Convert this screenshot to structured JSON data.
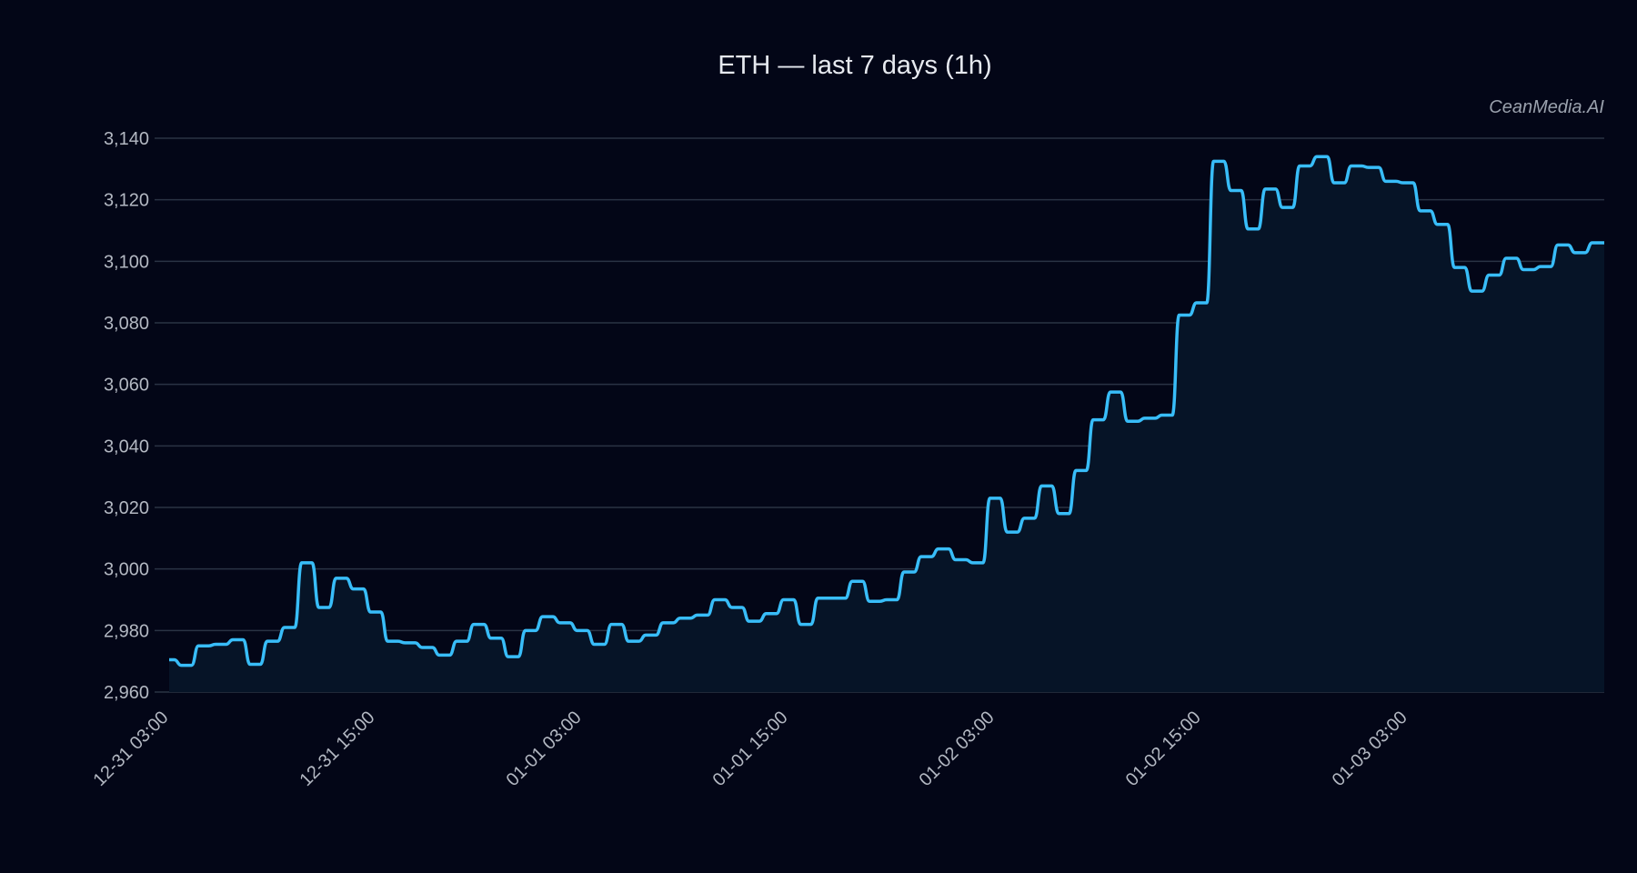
{
  "chart": {
    "title": "ETH — last 7 days (1h)",
    "watermark": "CeanMedia.AI"
  },
  "colors": {
    "background": "#030617",
    "line": "#38bdf8",
    "fill": "#061427",
    "grid": "#2a3344",
    "tick_text": "#b3b8c2",
    "title_text": "#e6e9ef"
  },
  "chart_data": {
    "type": "area",
    "title": "ETH — last 7 days (1h)",
    "xlabel": "",
    "ylabel": "",
    "ylim": [
      2960,
      3140
    ],
    "yticks": [
      2960,
      2980,
      3000,
      3020,
      3040,
      3060,
      3080,
      3100,
      3120,
      3140
    ],
    "ytick_labels": [
      "2,960",
      "2,980",
      "3,000",
      "3,020",
      "3,040",
      "3,060",
      "3,080",
      "3,100",
      "3,120",
      "3,140"
    ],
    "xtick_labels": [
      "12-31 03:00",
      "12-31 15:00",
      "01-01 03:00",
      "01-01 15:00",
      "01-02 03:00",
      "01-02 15:00",
      "01-03 03:00"
    ],
    "xtick_hours": [
      0,
      12,
      24,
      36,
      48,
      60,
      72
    ],
    "grid": true,
    "legend": null,
    "interval": "1h",
    "series": [
      {
        "name": "ETH",
        "values": [
          2970.5,
          2968.7,
          2975,
          2975.5,
          2977,
          2969,
          2976.5,
          2981,
          3002,
          2987.5,
          2997,
          2993.5,
          2986,
          2976.5,
          2976,
          2974.5,
          2972,
          2976.5,
          2982,
          2977.5,
          2971.5,
          2980,
          2984.5,
          2982.5,
          2980,
          2975.5,
          2982,
          2976.5,
          2978.5,
          2982.5,
          2984,
          2985,
          2990,
          2987.5,
          2983,
          2985.5,
          2990,
          2982,
          2990.5,
          2990.5,
          2996,
          2989.5,
          2990,
          2999,
          3004,
          3006.5,
          3003,
          3002,
          3023,
          3012,
          3016.5,
          3027,
          3018,
          3032,
          3048.5,
          3057.5,
          3048,
          3049,
          3050,
          3082.5,
          3086.5,
          3132.5,
          3123,
          3110.5,
          3123.5,
          3117.5,
          3131,
          3134,
          3125.5,
          3131,
          3130.5,
          3126,
          3125.5,
          3116.4,
          3112,
          3098,
          3090.3,
          3095.5,
          3101,
          3097.3,
          3098.3,
          3105.3,
          3102.8,
          3106
        ]
      }
    ]
  }
}
